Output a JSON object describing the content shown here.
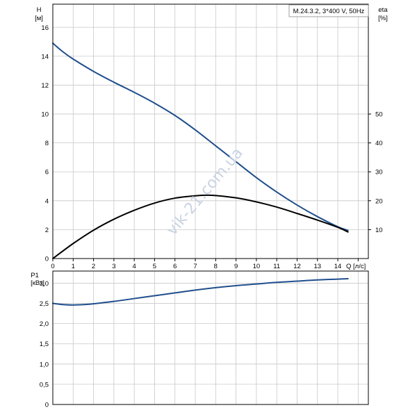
{
  "watermark": "vik-21.com.ua",
  "legend_box": "M.24.3.2, 3*400 V, 50Hz",
  "colors": {
    "head_curve": "#1f4e8c",
    "eff_curve": "#000000",
    "power_curve": "#1f4e8c",
    "grid": "#c8c8c8",
    "axis": "#000000"
  },
  "chart_data": [
    {
      "type": "line",
      "title": "",
      "legend_box": "M.24.3.2, 3*400 V, 50Hz",
      "xlabel": "Q [л/с]",
      "xlim": [
        0,
        15.5
      ],
      "xticks": [
        "0",
        "1",
        "2",
        "3",
        "4",
        "5",
        "6",
        "7",
        "8",
        "9",
        "10",
        "11",
        "12",
        "13",
        "14"
      ],
      "ylabel_top": "H",
      "ylabel_unit": "[м]",
      "ylim": [
        0,
        17.6
      ],
      "yticks": [
        "0",
        "2",
        "4",
        "6",
        "8",
        "10",
        "12",
        "14",
        "16"
      ],
      "y2label_top": "eta",
      "y2label_unit": "[%]",
      "y2lim": [
        0,
        88
      ],
      "y2ticks": [
        "10",
        "20",
        "30",
        "40",
        "50"
      ],
      "grid": true,
      "series": [
        {
          "role": "head",
          "axis": "left",
          "color": "#1f4e8c",
          "x": [
            0,
            0.5,
            1,
            2,
            3,
            4,
            5,
            6,
            7,
            8,
            9,
            10,
            11,
            12,
            13,
            14,
            14.5
          ],
          "y": [
            14.9,
            14.3,
            13.8,
            12.95,
            12.2,
            11.5,
            10.75,
            9.9,
            8.9,
            7.8,
            6.7,
            5.6,
            4.6,
            3.7,
            2.9,
            2.2,
            1.95
          ]
        },
        {
          "role": "efficiency",
          "axis": "right",
          "color": "#000000",
          "x": [
            0,
            1,
            2,
            3,
            4,
            5,
            6,
            7,
            7.5,
            8,
            9,
            10,
            11,
            12,
            13,
            14,
            14.5
          ],
          "y": [
            0,
            5.2,
            9.8,
            13.6,
            16.7,
            19.2,
            20.9,
            21.7,
            21.9,
            21.8,
            21.0,
            19.6,
            17.8,
            15.6,
            13.3,
            10.8,
            9.2
          ]
        }
      ]
    },
    {
      "type": "line",
      "title": "",
      "xlabel": "",
      "xlim": [
        0,
        15.5
      ],
      "ylabel_top": "P1",
      "ylabel_unit": "[кВт]",
      "ylim": [
        0,
        3.3
      ],
      "yticks": [
        "0",
        "0,5",
        "1,0",
        "1,5",
        "2,0",
        "2,5",
        "3,0"
      ],
      "grid": true,
      "series": [
        {
          "role": "power",
          "axis": "left",
          "color": "#1f4e8c",
          "x": [
            0,
            0.5,
            1,
            1.5,
            2,
            3,
            4,
            5,
            6,
            7,
            8,
            9,
            10,
            11,
            12,
            13,
            14,
            14.5
          ],
          "y": [
            2.5,
            2.47,
            2.46,
            2.47,
            2.49,
            2.55,
            2.62,
            2.69,
            2.76,
            2.83,
            2.89,
            2.94,
            2.98,
            3.02,
            3.05,
            3.08,
            3.1,
            3.11
          ]
        }
      ]
    }
  ]
}
